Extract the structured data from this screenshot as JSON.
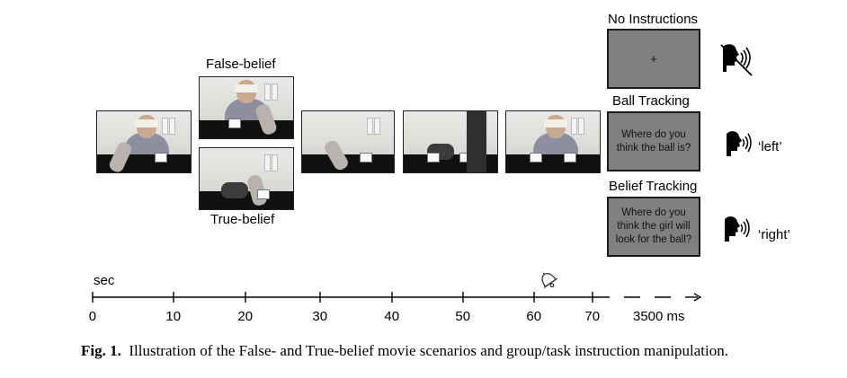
{
  "figure": {
    "headings": {
      "false_belief": "False-belief",
      "true_belief": "True-belief",
      "no_instructions": "No Instructions",
      "ball_tracking": "Ball Tracking",
      "belief_tracking": "Belief Tracking"
    },
    "screens": {
      "fixation": "+",
      "ball_question": "Where do you think the ball is?",
      "belief_question": "Where do you think the girl will look for the ball?"
    },
    "responses": {
      "left": "‘left’",
      "right": "‘right’"
    },
    "icons": {
      "no_speech": "speaking-head-crossed-icon",
      "speech": "speaking-head-icon",
      "bell": "bell-icon"
    },
    "timeline": {
      "unit": "sec",
      "ticks": [
        "0",
        "10",
        "20",
        "30",
        "40",
        "50",
        "60",
        "70"
      ],
      "tail_label": "3500 ms"
    }
  },
  "caption": {
    "label": "Fig. 1.",
    "text": "Illustration of the False- and True-belief movie scenarios and group/task instruction manipulation."
  }
}
